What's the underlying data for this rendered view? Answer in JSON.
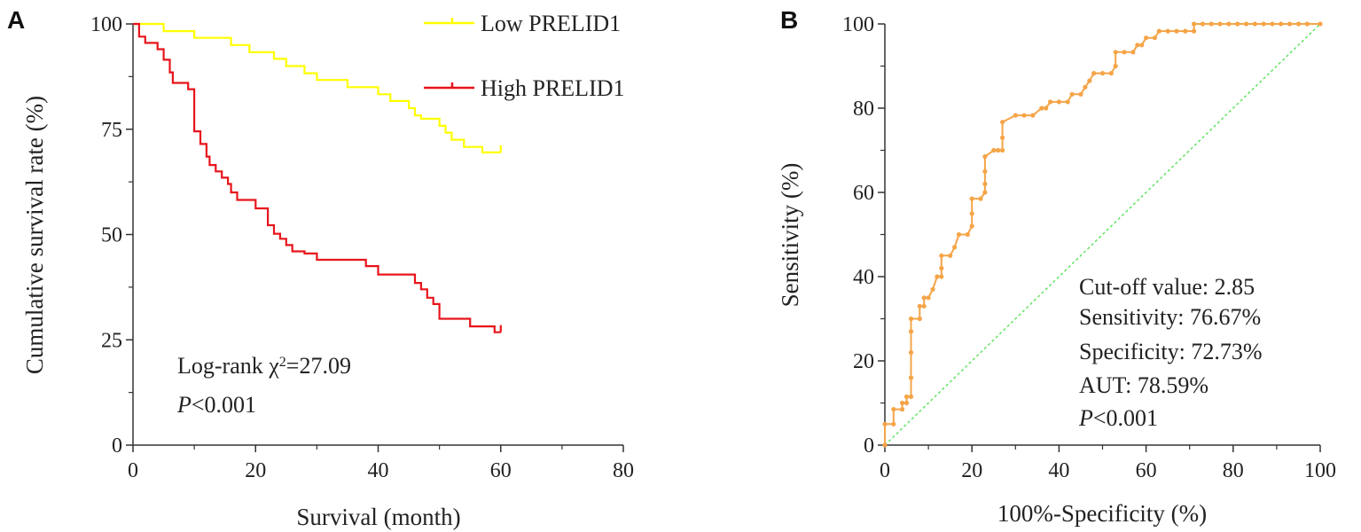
{
  "chart_data": [
    {
      "panel": "A",
      "type": "line",
      "xlabel": "Survival (month)",
      "ylabel": "Cumulative survival rate (%)",
      "xlim": [
        0,
        80
      ],
      "ylim": [
        0,
        100
      ],
      "x_ticks": [
        0,
        20,
        40,
        60,
        80
      ],
      "y_ticks": [
        0,
        25,
        50,
        75,
        100
      ],
      "series": [
        {
          "name": "Low PRELID1",
          "color": "#ffff00",
          "steps": [
            [
              0,
              100
            ],
            [
              5,
              100
            ],
            [
              5,
              98.3
            ],
            [
              10,
              98.3
            ],
            [
              10,
              96.7
            ],
            [
              16,
              96.7
            ],
            [
              16,
              95
            ],
            [
              19,
              95
            ],
            [
              19,
              93.3
            ],
            [
              23,
              93.3
            ],
            [
              23,
              91.7
            ],
            [
              25,
              91.7
            ],
            [
              25,
              90
            ],
            [
              28,
              90
            ],
            [
              28,
              88.3
            ],
            [
              30,
              88.3
            ],
            [
              30,
              86.7
            ],
            [
              35,
              86.7
            ],
            [
              35,
              85
            ],
            [
              40,
              85
            ],
            [
              40,
              83.3
            ],
            [
              42,
              83.3
            ],
            [
              42,
              81.7
            ],
            [
              45,
              81.7
            ],
            [
              45,
              80
            ],
            [
              46,
              80
            ],
            [
              46,
              78.3
            ],
            [
              47,
              78.3
            ],
            [
              47,
              77.5
            ],
            [
              50,
              77.5
            ],
            [
              50,
              75.8
            ],
            [
              51,
              75.8
            ],
            [
              51,
              74.2
            ],
            [
              52,
              74.2
            ],
            [
              52,
              72.5
            ],
            [
              54,
              72.5
            ],
            [
              54,
              70.8
            ],
            [
              57,
              70.8
            ],
            [
              57,
              69.5
            ],
            [
              60,
              69.5
            ]
          ],
          "censor_x": [
            60
          ]
        },
        {
          "name": "High PRELID1",
          "color": "#e8141b",
          "steps": [
            [
              0,
              100
            ],
            [
              1,
              100
            ],
            [
              1,
              97
            ],
            [
              2,
              97
            ],
            [
              2,
              95.5
            ],
            [
              4,
              95.5
            ],
            [
              4,
              94
            ],
            [
              5,
              94
            ],
            [
              5,
              91.5
            ],
            [
              6,
              91.5
            ],
            [
              6,
              88.5
            ],
            [
              6.5,
              88.5
            ],
            [
              6.5,
              86
            ],
            [
              9,
              86
            ],
            [
              9,
              84.5
            ],
            [
              10,
              84.5
            ],
            [
              10,
              82.5
            ],
            [
              10,
              74.5
            ],
            [
              11,
              74.5
            ],
            [
              11,
              71.5
            ],
            [
              12,
              71.5
            ],
            [
              12,
              68.5
            ],
            [
              12.5,
              68.5
            ],
            [
              12.5,
              66.5
            ],
            [
              13.5,
              66.5
            ],
            [
              13.5,
              65
            ],
            [
              14.5,
              65
            ],
            [
              14.5,
              63.5
            ],
            [
              15.5,
              63.5
            ],
            [
              15.5,
              62
            ],
            [
              16,
              62
            ],
            [
              16,
              60
            ],
            [
              17,
              60
            ],
            [
              17,
              58.2
            ],
            [
              20,
              58.2
            ],
            [
              20,
              56.2
            ],
            [
              22,
              56.2
            ],
            [
              22,
              52.2
            ],
            [
              23,
              52.2
            ],
            [
              23,
              50.2
            ],
            [
              24,
              50.2
            ],
            [
              24,
              49
            ],
            [
              25,
              49
            ],
            [
              25,
              47.5
            ],
            [
              26,
              47.5
            ],
            [
              26,
              46
            ],
            [
              28,
              46
            ],
            [
              28,
              45.5
            ],
            [
              30,
              45.5
            ],
            [
              30,
              44
            ],
            [
              38,
              44
            ],
            [
              38,
              42.5
            ],
            [
              40,
              42.5
            ],
            [
              40,
              40.5
            ],
            [
              46,
              40.5
            ],
            [
              46,
              38.5
            ],
            [
              47,
              38.5
            ],
            [
              47,
              37
            ],
            [
              48,
              37
            ],
            [
              48,
              35
            ],
            [
              49,
              35
            ],
            [
              49,
              33.5
            ],
            [
              50,
              33.5
            ],
            [
              50,
              30
            ],
            [
              55,
              30
            ],
            [
              55,
              28.2
            ],
            [
              59,
              28.2
            ],
            [
              59,
              26.8
            ],
            [
              60,
              26.8
            ]
          ],
          "censor_x": [
            60
          ]
        }
      ],
      "annotations": [
        "Log-rank χ²=27.09",
        "P<0.001"
      ]
    },
    {
      "panel": "B",
      "type": "line",
      "xlabel": "100%-Specificity (%)",
      "ylabel": "Sensitivity (%)",
      "xlim": [
        0,
        100
      ],
      "ylim": [
        0,
        100
      ],
      "x_ticks": [
        0,
        20,
        40,
        60,
        80,
        100
      ],
      "y_ticks": [
        0,
        20,
        40,
        60,
        80,
        100
      ],
      "series": [
        {
          "name": "ROC",
          "color": "#f5a447",
          "points": [
            [
              0,
              0
            ],
            [
              0,
              5
            ],
            [
              2,
              5
            ],
            [
              2,
              8.5
            ],
            [
              4,
              8.5
            ],
            [
              4,
              10
            ],
            [
              5,
              10
            ],
            [
              5,
              11.5
            ],
            [
              6,
              11.5
            ],
            [
              6,
              16
            ],
            [
              6,
              22
            ],
            [
              6,
              27
            ],
            [
              6,
              30
            ],
            [
              8,
              30
            ],
            [
              8,
              33
            ],
            [
              9,
              33
            ],
            [
              9,
              35
            ],
            [
              10,
              35
            ],
            [
              11,
              37
            ],
            [
              12,
              40
            ],
            [
              13,
              40
            ],
            [
              13,
              42
            ],
            [
              13,
              45
            ],
            [
              15,
              45
            ],
            [
              16,
              47
            ],
            [
              17,
              50
            ],
            [
              19,
              50
            ],
            [
              20,
              52
            ],
            [
              20,
              55
            ],
            [
              20,
              58.5
            ],
            [
              22,
              58.5
            ],
            [
              23,
              60
            ],
            [
              23,
              62
            ],
            [
              23,
              65
            ],
            [
              23,
              68.5
            ],
            [
              25,
              70
            ],
            [
              26,
              70
            ],
            [
              27,
              70
            ],
            [
              27,
              73
            ],
            [
              27,
              76.7
            ],
            [
              30,
              78.3
            ],
            [
              32,
              78.3
            ],
            [
              34,
              78.3
            ],
            [
              36,
              80
            ],
            [
              37,
              80
            ],
            [
              38,
              81.5
            ],
            [
              40,
              81.5
            ],
            [
              42,
              81.5
            ],
            [
              43,
              83.3
            ],
            [
              45,
              83.3
            ],
            [
              46,
              85
            ],
            [
              47,
              86.5
            ],
            [
              48,
              88.3
            ],
            [
              50,
              88.3
            ],
            [
              52,
              88.3
            ],
            [
              53,
              90
            ],
            [
              53,
              93.3
            ],
            [
              55,
              93.3
            ],
            [
              57,
              93.3
            ],
            [
              58,
              95
            ],
            [
              59,
              95
            ],
            [
              60,
              96.7
            ],
            [
              62,
              96.7
            ],
            [
              63,
              98.3
            ],
            [
              65,
              98.3
            ],
            [
              67,
              98.3
            ],
            [
              69,
              98.3
            ],
            [
              71,
              98.3
            ],
            [
              71,
              100
            ],
            [
              73,
              100
            ],
            [
              75,
              100
            ],
            [
              77,
              100
            ],
            [
              79,
              100
            ],
            [
              81,
              100
            ],
            [
              83,
              100
            ],
            [
              85,
              100
            ],
            [
              87,
              100
            ],
            [
              89,
              100
            ],
            [
              91,
              100
            ],
            [
              93,
              100
            ],
            [
              95,
              100
            ],
            [
              97,
              100
            ],
            [
              100,
              100
            ]
          ]
        },
        {
          "name": "Reference",
          "color": "#5ee35e",
          "points": [
            [
              0,
              0
            ],
            [
              100,
              100
            ]
          ]
        }
      ],
      "annotations": [
        "Cut-off value: 2.85",
        "Sensitivity: 76.67%",
        "Specificity: 72.73%",
        "AUT: 78.59%",
        "P<0.001"
      ]
    }
  ],
  "panelA": {
    "letter": "A",
    "legend": [
      "Low PRELID1",
      "High PRELID1"
    ],
    "stat_line1": "Log-rank χ",
    "stat_sup": "2",
    "stat_line1_tail": "=27.09",
    "p_italic": "P",
    "p_rest": "<0.001"
  },
  "panelB": {
    "letter": "B",
    "ann1": "Cut-off value: 2.85",
    "ann2": "Sensitivity: 76.67%",
    "ann3": "Specificity: 72.73%",
    "ann4": "AUT: 78.59%",
    "p_italic": "P",
    "p_rest": "<0.001"
  }
}
